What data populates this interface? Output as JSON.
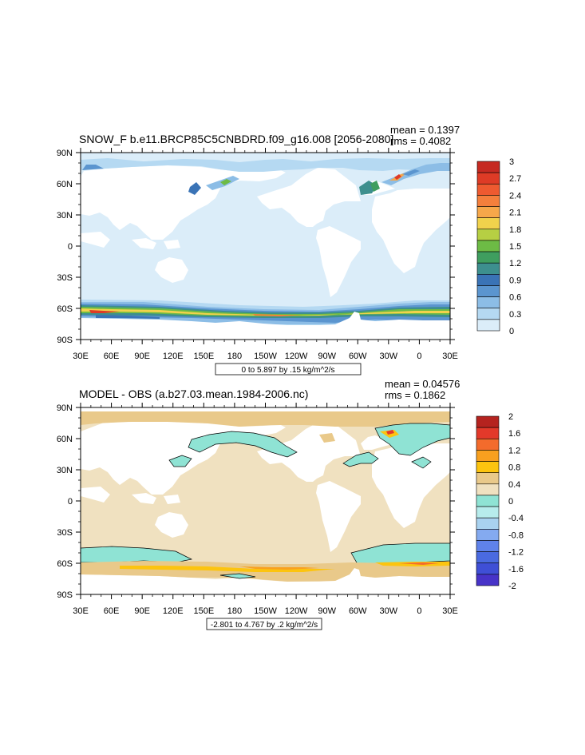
{
  "chart_data": [
    {
      "type": "heatmap",
      "title": "SNOW_F b.e11.BRCP85C5CNBDRD.f09_g16.008 [2056-2080]",
      "stats": {
        "mean": "mean = 0.1397",
        "rms": "rms = 0.4082"
      },
      "contour_info": "0 to 5.897 by .15 kg/m^2/s",
      "x_ticks": [
        "30E",
        "60E",
        "90E",
        "120E",
        "150E",
        "180",
        "150W",
        "120W",
        "90W",
        "60W",
        "30W",
        "0",
        "30E"
      ],
      "y_ticks": [
        "90N",
        "60N",
        "30N",
        "0",
        "30S",
        "60S",
        "90S"
      ],
      "xlim": [
        30,
        390
      ],
      "ylim": [
        -90,
        90
      ],
      "colorbar": {
        "labels": [
          "3",
          "2.7",
          "2.4",
          "2.1",
          "1.8",
          "1.5",
          "1.2",
          "0.9",
          "0.6",
          "0.3",
          "0"
        ],
        "colors": [
          "#c62a22",
          "#de3b26",
          "#ee5a30",
          "#f47f3c",
          "#f6a74a",
          "#f1d24c",
          "#b6cf43",
          "#6dbb45",
          "#3f9e5f",
          "#3d8f8e",
          "#3a73b6",
          "#5b95cf",
          "#8cbde6",
          "#b5d9f2",
          "#dbedf9"
        ]
      }
    },
    {
      "type": "heatmap",
      "title": "MODEL - OBS (a.b27.03.mean.1984-2006.nc)",
      "stats": {
        "mean": "mean = 0.04576",
        "rms": "rms = 0.1862"
      },
      "contour_info": "-2.801 to 4.767 by .2 kg/m^2/s",
      "x_ticks": [
        "30E",
        "60E",
        "90E",
        "120E",
        "150E",
        "180",
        "150W",
        "120W",
        "90W",
        "60W",
        "30W",
        "0",
        "30E"
      ],
      "y_ticks": [
        "90N",
        "60N",
        "30N",
        "0",
        "30S",
        "60S",
        "90S"
      ],
      "xlim": [
        30,
        390
      ],
      "ylim": [
        -90,
        90
      ],
      "colorbar": {
        "labels": [
          "2",
          "1.6",
          "1.2",
          "0.8",
          "0.4",
          "0",
          "-0.4",
          "-0.8",
          "-1.2",
          "-1.6",
          "-2"
        ],
        "colors": [
          "#b5231f",
          "#e3392a",
          "#f36b2c",
          "#f8a01f",
          "#fcc40f",
          "#e9c98a",
          "#f0e1c0",
          "#8fe3d4",
          "#b7ecec",
          "#a9d2f0",
          "#84aaf0",
          "#5f82ea",
          "#4a6ae0",
          "#3f4fd6",
          "#4733c8"
        ]
      }
    }
  ]
}
